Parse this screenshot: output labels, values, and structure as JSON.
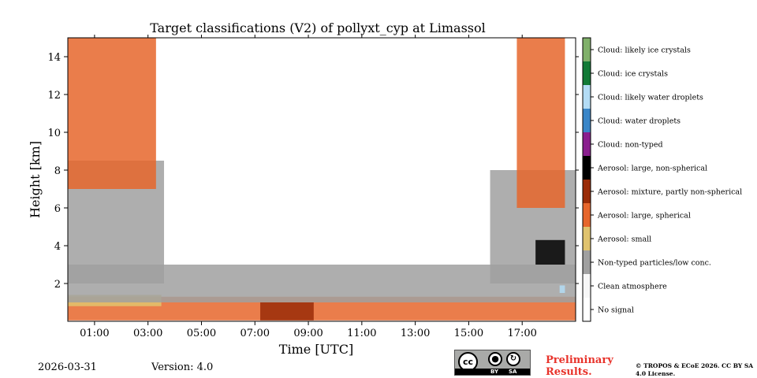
{
  "chart_data": {
    "type": "heatmap",
    "title": "Target classifications (V2) of pollyxt_cyp at Limassol",
    "xlabel": "Time [UTC]",
    "ylabel": "Height [km]",
    "xlim_hours": [
      0,
      19
    ],
    "ylim_km": [
      0,
      15
    ],
    "x_ticks": [
      {
        "hour": 1,
        "label": "01:00"
      },
      {
        "hour": 3,
        "label": "03:00"
      },
      {
        "hour": 5,
        "label": "05:00"
      },
      {
        "hour": 7,
        "label": "07:00"
      },
      {
        "hour": 9,
        "label": "09:00"
      },
      {
        "hour": 11,
        "label": "11:00"
      },
      {
        "hour": 13,
        "label": "13:00"
      },
      {
        "hour": 15,
        "label": "15:00"
      },
      {
        "hour": 17,
        "label": "17:00"
      }
    ],
    "y_ticks": [
      {
        "km": 2,
        "label": "2"
      },
      {
        "km": 4,
        "label": "4"
      },
      {
        "km": 6,
        "label": "6"
      },
      {
        "km": 8,
        "label": "8"
      },
      {
        "km": 10,
        "label": "10"
      },
      {
        "km": 12,
        "label": "12"
      },
      {
        "km": 14,
        "label": "14"
      }
    ],
    "classes": [
      {
        "label": "No signal",
        "color": "#ffffff"
      },
      {
        "label": "Clean atmosphere",
        "color": "#f7f7f7"
      },
      {
        "label": "Non-typed particles/low conc.",
        "color": "#a0a0a0"
      },
      {
        "label": "Aerosol: small",
        "color": "#e0c36e"
      },
      {
        "label": "Aerosol: large, spherical",
        "color": "#e6662c"
      },
      {
        "label": "Aerosol: mixture, partly non-spherical",
        "color": "#9a2c08"
      },
      {
        "label": "Aerosol: large, non-spherical",
        "color": "#000000"
      },
      {
        "label": "Cloud: non-typed",
        "color": "#8a1f8e"
      },
      {
        "label": "Cloud: water droplets",
        "color": "#3a86c8"
      },
      {
        "label": "Cloud: likely water droplets",
        "color": "#b3dcf5"
      },
      {
        "label": "Cloud: ice crystals",
        "color": "#127a36"
      },
      {
        "label": "Cloud: likely ice crystals",
        "color": "#80b06a"
      }
    ],
    "regions": [
      {
        "class": "Aerosol: large, spherical",
        "time_range": [
          0,
          19
        ],
        "height_range_km": [
          0.05,
          1.3
        ]
      },
      {
        "class": "Aerosol: small",
        "time_range": [
          0,
          3.5
        ],
        "height_range_km": [
          0.8,
          1.4
        ]
      },
      {
        "class": "Non-typed particles/low conc.",
        "time_range": [
          0,
          19
        ],
        "height_range_km": [
          1.0,
          3.0
        ]
      },
      {
        "class": "Non-typed particles/low conc.",
        "time_range": [
          0,
          3.6
        ],
        "height_range_km": [
          2.0,
          8.5
        ]
      },
      {
        "class": "Aerosol: large, spherical",
        "time_range": [
          0,
          3.3
        ],
        "height_range_km": [
          7.0,
          15.0
        ]
      },
      {
        "class": "Aerosol: mixture, partly non-spherical",
        "time_range": [
          7.2,
          9.2
        ],
        "height_range_km": [
          0.05,
          1.0
        ]
      },
      {
        "class": "Non-typed particles/low conc.",
        "time_range": [
          15.8,
          19
        ],
        "height_range_km": [
          2.0,
          8.0
        ]
      },
      {
        "class": "Aerosol: large, spherical",
        "time_range": [
          16.8,
          18.6
        ],
        "height_range_km": [
          6.0,
          15.0
        ]
      },
      {
        "class": "Aerosol: large, non-spherical",
        "time_range": [
          17.5,
          18.6
        ],
        "height_range_km": [
          3.0,
          4.3
        ]
      },
      {
        "class": "Cloud: likely water droplets",
        "time_range": [
          18.4,
          18.6
        ],
        "height_range_km": [
          1.5,
          1.9
        ]
      }
    ]
  },
  "footer": {
    "date": "2026-03-31",
    "version": "Version: 4.0",
    "preliminary": "Preliminary Results.",
    "copyright": "© TROPOS & ECoE 2026. CC BY SA 4.0 License."
  },
  "license_badge": {
    "cc": "cc",
    "by": "BY",
    "sa": "SA"
  }
}
